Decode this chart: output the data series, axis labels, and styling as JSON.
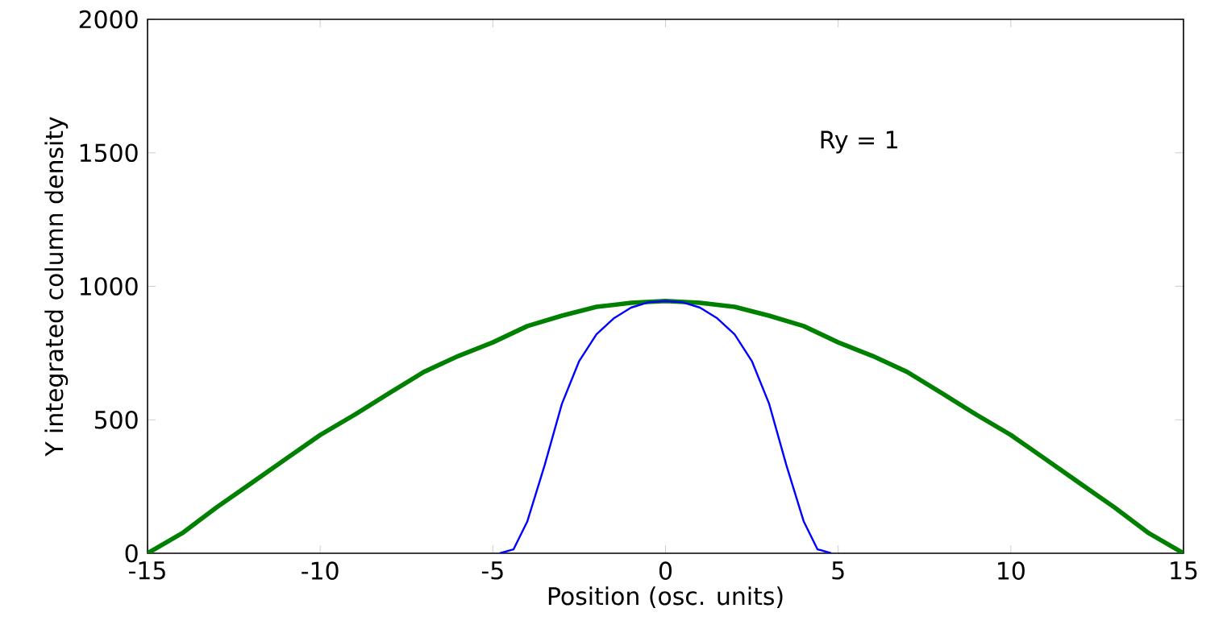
{
  "chart_data": {
    "type": "line",
    "xlabel": "Position (osc. units)",
    "ylabel": "Y integrated column density",
    "annotations": [
      "Ry = 1"
    ],
    "series": [
      {
        "color": "#008000",
        "x": [
          -15,
          -14,
          -13,
          -12,
          -11,
          -10,
          -9,
          -8,
          -7,
          -6,
          -5,
          -4,
          -3,
          -2,
          -1,
          0,
          1,
          2,
          3,
          4,
          5,
          6,
          7,
          8,
          9,
          10,
          11,
          12,
          13,
          14,
          15
        ],
        "values": [
          0,
          75,
          172,
          262,
          353,
          443,
          519,
          600,
          679,
          739,
          790,
          851,
          890,
          923,
          938,
          945,
          938,
          923,
          890,
          851,
          790,
          739,
          679,
          600,
          519,
          443,
          353,
          262,
          172,
          75,
          0
        ]
      },
      {
        "color": "#0000ff",
        "x": [
          -4.8,
          -4.4,
          -4,
          -3.5,
          -3,
          -2.5,
          -2,
          -1.5,
          -1,
          -0.5,
          0,
          0.5,
          1,
          1.5,
          2,
          2.5,
          3,
          3.5,
          4,
          4.4,
          4.8
        ],
        "values": [
          0,
          15,
          120,
          330,
          560,
          720,
          820,
          880,
          920,
          940,
          945,
          940,
          920,
          880,
          820,
          720,
          560,
          330,
          120,
          15,
          0
        ]
      }
    ],
    "xlim": [
      -15,
      15
    ],
    "ylim": [
      0,
      2000
    ],
    "xticks": [
      -15,
      -10,
      -5,
      0,
      5,
      10,
      15
    ],
    "yticks": [
      0,
      500,
      1000,
      1500,
      2000
    ],
    "grid": false,
    "marker": "none",
    "line_style": "solid"
  }
}
